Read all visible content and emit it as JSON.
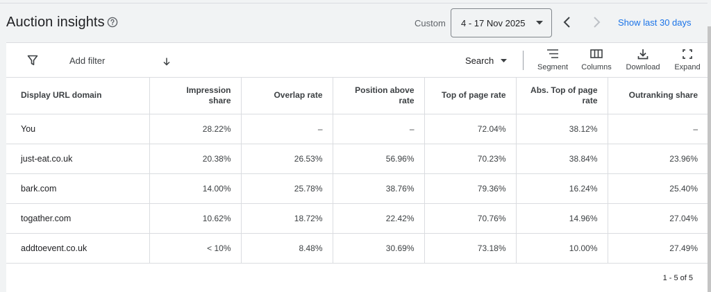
{
  "header": {
    "title": "Auction insights",
    "custom_label": "Custom",
    "date_range": "4 - 17 Nov 2025",
    "show_last_label": "Show last 30 days"
  },
  "toolbar": {
    "add_filter": "Add filter",
    "search_select": "Search",
    "segment": "Segment",
    "columns": "Columns",
    "download": "Download",
    "expand": "Expand"
  },
  "table": {
    "columns": [
      "Display URL domain",
      "Impression share",
      "Overlap rate",
      "Position above rate",
      "Top of page rate",
      "Abs. Top of page rate",
      "Outranking share"
    ],
    "rows": [
      [
        "You",
        "28.22%",
        "–",
        "–",
        "72.04%",
        "38.12%",
        "–"
      ],
      [
        "just-eat.co.uk",
        "20.38%",
        "26.53%",
        "56.96%",
        "70.23%",
        "38.84%",
        "23.96%"
      ],
      [
        "bark.com",
        "14.00%",
        "25.78%",
        "38.76%",
        "79.36%",
        "16.24%",
        "25.40%"
      ],
      [
        "togather.com",
        "10.62%",
        "18.72%",
        "22.42%",
        "70.76%",
        "14.96%",
        "27.04%"
      ],
      [
        "addtoevent.co.uk",
        "< 10%",
        "8.48%",
        "30.69%",
        "73.18%",
        "10.00%",
        "27.49%"
      ]
    ],
    "sorted_column": "Impression share",
    "sort_direction": "descending"
  },
  "pagination": "1 - 5 of 5",
  "colors": {
    "accent": "#1a73e8",
    "text": "#202124",
    "border": "#dadce0",
    "background": "#f1f3f4"
  }
}
